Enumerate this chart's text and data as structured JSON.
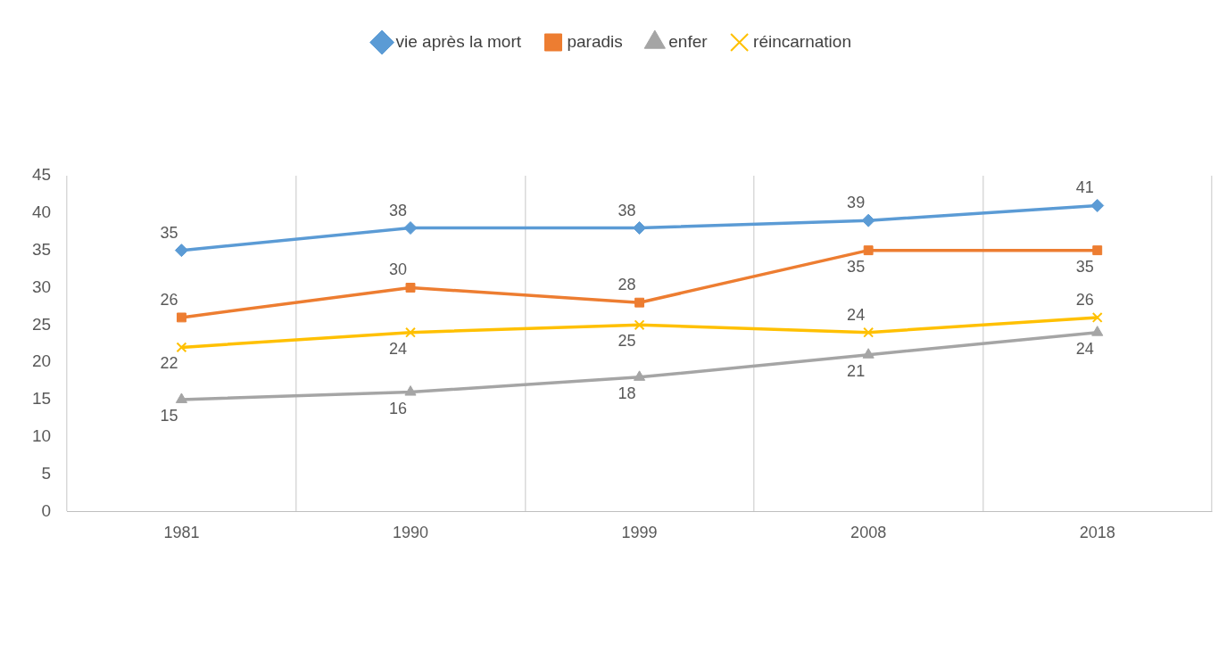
{
  "chart_data": {
    "type": "line",
    "categories": [
      "1981",
      "1990",
      "1999",
      "2008",
      "2018"
    ],
    "series": [
      {
        "name": "vie après la mort",
        "color": "#5b9bd5",
        "values": [
          35,
          38,
          38,
          39,
          41
        ],
        "marker": "diamond"
      },
      {
        "name": "paradis",
        "color": "#ed7d31",
        "values": [
          26,
          30,
          28,
          35,
          35
        ],
        "marker": "square"
      },
      {
        "name": "enfer",
        "color": "#a5a5a5",
        "values": [
          15,
          16,
          18,
          21,
          24
        ],
        "marker": "triangle"
      },
      {
        "name": "réincarnation",
        "color": "#ffc000",
        "values": [
          22,
          24,
          25,
          24,
          26
        ],
        "marker": "cross"
      }
    ],
    "ylim": [
      0,
      45
    ],
    "yticks": [
      0,
      5,
      10,
      15,
      20,
      25,
      30,
      35,
      40,
      45
    ],
    "grid": "x",
    "legend": "top",
    "data_labels": true,
    "line_style": "solid"
  }
}
